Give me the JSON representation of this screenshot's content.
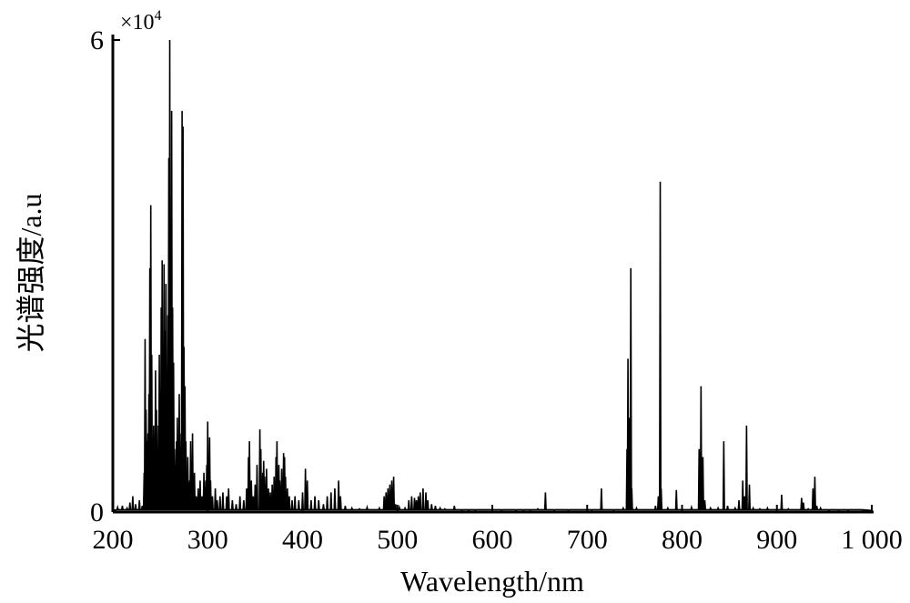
{
  "chart_data": {
    "type": "line",
    "title": "",
    "xlabel": "Wavelength/nm",
    "ylabel": "光谱强度/a.u",
    "y_multiplier": "×10",
    "y_multiplier_exp": "4",
    "xlim": [
      200,
      1000
    ],
    "ylim": [
      0,
      6
    ],
    "x_ticks": [
      {
        "value": 200,
        "label": "200"
      },
      {
        "value": 300,
        "label": "300"
      },
      {
        "value": 400,
        "label": "400"
      },
      {
        "value": 500,
        "label": "500"
      },
      {
        "value": 600,
        "label": "600"
      },
      {
        "value": 700,
        "label": "700"
      },
      {
        "value": 800,
        "label": "800"
      },
      {
        "value": 900,
        "label": "900"
      },
      {
        "value": 1000,
        "label": "1 000"
      }
    ],
    "y_ticks": [
      {
        "value": 0,
        "label": "0"
      },
      {
        "value": 6,
        "label": "6"
      }
    ],
    "grid": false,
    "line_color": "#000000",
    "series": [
      {
        "peaks": [
          [
            205,
            0.06
          ],
          [
            210,
            0.08
          ],
          [
            215,
            0.05
          ],
          [
            218,
            0.12
          ],
          [
            221,
            0.2
          ],
          [
            224,
            0.1
          ],
          [
            228,
            0.15
          ],
          [
            231,
            0.08
          ],
          [
            233,
            0.5
          ],
          [
            234,
            2.2
          ],
          [
            235,
            1.3
          ],
          [
            236,
            0.9
          ],
          [
            237,
            1.0
          ],
          [
            238,
            1.5
          ],
          [
            239,
            3.1
          ],
          [
            240,
            3.9
          ],
          [
            241,
            2.0
          ],
          [
            242,
            0.8
          ],
          [
            243,
            1.1
          ],
          [
            244,
            0.9
          ],
          [
            245,
            1.8
          ],
          [
            246,
            1.3
          ],
          [
            247,
            0.7
          ],
          [
            248,
            1.1
          ],
          [
            249,
            2.0
          ],
          [
            250,
            1.5
          ],
          [
            251,
            2.6
          ],
          [
            252,
            3.2
          ],
          [
            253,
            1.2
          ],
          [
            254,
            3.15
          ],
          [
            255,
            2.3
          ],
          [
            256,
            2.9
          ],
          [
            257,
            1.0
          ],
          [
            258,
            2.5
          ],
          [
            259,
            4.5
          ],
          [
            260,
            6.0
          ],
          [
            261,
            2.2
          ],
          [
            262,
            5.1
          ],
          [
            263,
            2.6
          ],
          [
            264,
            1.9
          ],
          [
            265,
            0.8
          ],
          [
            266,
            0.6
          ],
          [
            267,
            0.9
          ],
          [
            268,
            1.2
          ],
          [
            270,
            1.5
          ],
          [
            272,
            1.0
          ],
          [
            273,
            5.1
          ],
          [
            274,
            4.9
          ],
          [
            275,
            2.1
          ],
          [
            276,
            1.6
          ],
          [
            277,
            0.9
          ],
          [
            279,
            0.7
          ],
          [
            281,
            0.4
          ],
          [
            282,
            0.9
          ],
          [
            283,
            0.3
          ],
          [
            284,
            1.0
          ],
          [
            286,
            0.5
          ],
          [
            288,
            0.2
          ],
          [
            290,
            0.3
          ],
          [
            292,
            0.4
          ],
          [
            294,
            0.2
          ],
          [
            296,
            0.5
          ],
          [
            298,
            0.4
          ],
          [
            299,
            0.6
          ],
          [
            300,
            1.15
          ],
          [
            301,
            0.5
          ],
          [
            302,
            0.95
          ],
          [
            303,
            0.4
          ],
          [
            305,
            0.2
          ],
          [
            308,
            0.3
          ],
          [
            310,
            0.15
          ],
          [
            313,
            0.2
          ],
          [
            316,
            0.25
          ],
          [
            320,
            0.2
          ],
          [
            322,
            0.3
          ],
          [
            326,
            0.15
          ],
          [
            330,
            0.1
          ],
          [
            334,
            0.2
          ],
          [
            338,
            0.15
          ],
          [
            341,
            0.3
          ],
          [
            343,
            0.7
          ],
          [
            344,
            0.9
          ],
          [
            346,
            0.4
          ],
          [
            348,
            0.2
          ],
          [
            350,
            0.35
          ],
          [
            352,
            0.6
          ],
          [
            355,
            1.05
          ],
          [
            356,
            0.8
          ],
          [
            358,
            0.5
          ],
          [
            359,
            0.65
          ],
          [
            360,
            0.45
          ],
          [
            362,
            0.55
          ],
          [
            364,
            0.3
          ],
          [
            366,
            0.25
          ],
          [
            368,
            0.35
          ],
          [
            370,
            0.45
          ],
          [
            372,
            0.7
          ],
          [
            373,
            0.9
          ],
          [
            375,
            0.6
          ],
          [
            376,
            0.4
          ],
          [
            378,
            0.55
          ],
          [
            380,
            0.75
          ],
          [
            381,
            0.7
          ],
          [
            382,
            0.45
          ],
          [
            384,
            0.3
          ],
          [
            386,
            0.2
          ],
          [
            389,
            0.15
          ],
          [
            392,
            0.2
          ],
          [
            396,
            0.15
          ],
          [
            400,
            0.25
          ],
          [
            403,
            0.55
          ],
          [
            405,
            0.4
          ],
          [
            409,
            0.15
          ],
          [
            413,
            0.2
          ],
          [
            417,
            0.15
          ],
          [
            422,
            0.1
          ],
          [
            426,
            0.2
          ],
          [
            430,
            0.25
          ],
          [
            434,
            0.3
          ],
          [
            438,
            0.4
          ],
          [
            440,
            0.2
          ],
          [
            445,
            0.08
          ],
          [
            452,
            0.05
          ],
          [
            460,
            0.04
          ],
          [
            468,
            0.06
          ],
          [
            475,
            0.03
          ],
          [
            481,
            0.05
          ],
          [
            486,
            0.2
          ],
          [
            488,
            0.25
          ],
          [
            490,
            0.3
          ],
          [
            492,
            0.35
          ],
          [
            494,
            0.4
          ],
          [
            496,
            0.45
          ],
          [
            498,
            0.1
          ],
          [
            502,
            0.06
          ],
          [
            508,
            0.05
          ],
          [
            512,
            0.15
          ],
          [
            515,
            0.2
          ],
          [
            518,
            0.18
          ],
          [
            520,
            0.15
          ],
          [
            522,
            0.2
          ],
          [
            524,
            0.25
          ],
          [
            527,
            0.3
          ],
          [
            530,
            0.25
          ],
          [
            532,
            0.15
          ],
          [
            536,
            0.1
          ],
          [
            540,
            0.08
          ],
          [
            545,
            0.05
          ],
          [
            550,
            0.04
          ],
          [
            556,
            0.03
          ],
          [
            560,
            0.08
          ],
          [
            568,
            0.02
          ],
          [
            575,
            0.02
          ],
          [
            582,
            0.02
          ],
          [
            590,
            0.03
          ],
          [
            600,
            0.02
          ],
          [
            610,
            0.02
          ],
          [
            618,
            0.03
          ],
          [
            625,
            0.02
          ],
          [
            633,
            0.02
          ],
          [
            640,
            0.02
          ],
          [
            648,
            0.04
          ],
          [
            656,
            0.25
          ],
          [
            665,
            0.02
          ],
          [
            680,
            0.02
          ],
          [
            695,
            0.03
          ],
          [
            705,
            0.02
          ],
          [
            715,
            0.3
          ],
          [
            728,
            0.02
          ],
          [
            738,
            0.05
          ],
          [
            742,
            0.8
          ],
          [
            743,
            1.95
          ],
          [
            744,
            1.2
          ],
          [
            746,
            3.1
          ],
          [
            747,
            0.3
          ],
          [
            752,
            0.05
          ],
          [
            760,
            0.03
          ],
          [
            772,
            0.08
          ],
          [
            775,
            0.2
          ],
          [
            777,
            4.2
          ],
          [
            778,
            0.3
          ],
          [
            785,
            0.05
          ],
          [
            794,
            0.28
          ],
          [
            800,
            0.04
          ],
          [
            810,
            0.06
          ],
          [
            818,
            0.8
          ],
          [
            819,
            0.75
          ],
          [
            820,
            1.6
          ],
          [
            822,
            0.7
          ],
          [
            824,
            0.15
          ],
          [
            830,
            0.05
          ],
          [
            838,
            0.05
          ],
          [
            844,
            0.9
          ],
          [
            848,
            0.08
          ],
          [
            856,
            0.05
          ],
          [
            860,
            0.15
          ],
          [
            864,
            0.4
          ],
          [
            866,
            0.2
          ],
          [
            868,
            1.1
          ],
          [
            871,
            0.35
          ],
          [
            875,
            0.05
          ],
          [
            882,
            0.04
          ],
          [
            890,
            0.05
          ],
          [
            898,
            0.03
          ],
          [
            905,
            0.22
          ],
          [
            912,
            0.04
          ],
          [
            920,
            0.03
          ],
          [
            926,
            0.18
          ],
          [
            928,
            0.12
          ],
          [
            933,
            0.04
          ],
          [
            938,
            0.3
          ],
          [
            940,
            0.45
          ],
          [
            942,
            0.08
          ],
          [
            946,
            0.05
          ],
          [
            955,
            0.02
          ],
          [
            965,
            0.02
          ],
          [
            975,
            0.02
          ],
          [
            990,
            0.02
          ]
        ]
      }
    ]
  }
}
